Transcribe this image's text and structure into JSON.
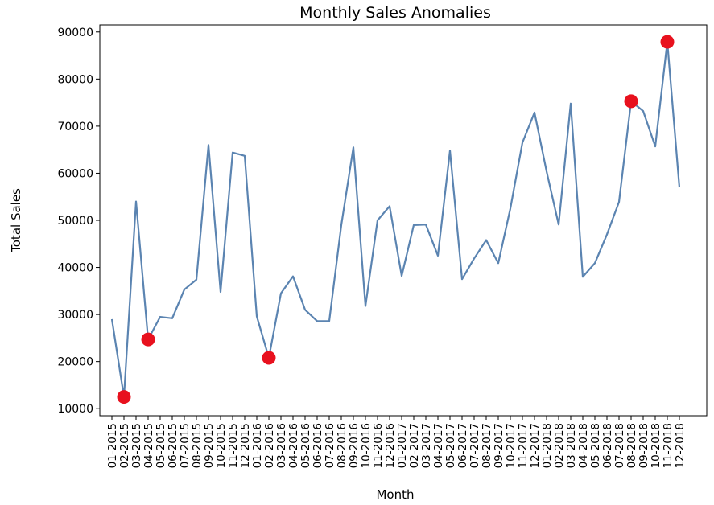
{
  "chart_data": {
    "type": "line",
    "title": "Monthly Sales Anomalies",
    "xlabel": "Month",
    "ylabel": "Total Sales",
    "ylim": [
      8500,
      91500
    ],
    "yticks": [
      10000,
      20000,
      30000,
      40000,
      50000,
      60000,
      70000,
      80000,
      90000
    ],
    "grid": false,
    "line_color": "#5b84b1",
    "anomaly_color": "#e8111e",
    "categories": [
      "01-2015",
      "02-2015",
      "03-2015",
      "04-2015",
      "05-2015",
      "06-2015",
      "07-2015",
      "08-2015",
      "09-2015",
      "10-2015",
      "11-2015",
      "12-2015",
      "01-2016",
      "02-2016",
      "03-2016",
      "04-2016",
      "05-2016",
      "06-2016",
      "07-2016",
      "08-2016",
      "09-2016",
      "10-2016",
      "11-2016",
      "12-2016",
      "01-2017",
      "02-2017",
      "03-2017",
      "04-2017",
      "05-2017",
      "06-2017",
      "07-2017",
      "08-2017",
      "09-2017",
      "10-2017",
      "11-2017",
      "12-2017",
      "01-2018",
      "02-2018",
      "03-2018",
      "04-2018",
      "05-2018",
      "06-2018",
      "07-2018",
      "08-2018",
      "09-2018",
      "10-2018",
      "11-2018",
      "12-2018"
    ],
    "series": [
      {
        "values": [
          29000,
          12500,
          54000,
          24700,
          29500,
          29200,
          35300,
          37400,
          66000,
          34800,
          64400,
          63700,
          29600,
          20800,
          34500,
          38100,
          31000,
          28600,
          28600,
          49000,
          65500,
          31800,
          50000,
          53000,
          38200,
          49000,
          49100,
          42500,
          64800,
          37500,
          41900,
          45800,
          40900,
          52500,
          66500,
          72900,
          60400,
          49100,
          74800,
          38000,
          40900,
          47000,
          53900,
          75300,
          73200,
          65700,
          87900,
          57000
        ]
      }
    ],
    "anomalies": [
      {
        "month": "02-2015",
        "value": 12500
      },
      {
        "month": "04-2015",
        "value": 24700
      },
      {
        "month": "02-2016",
        "value": 20800
      },
      {
        "month": "08-2018",
        "value": 75300
      },
      {
        "month": "11-2018",
        "value": 87900
      }
    ]
  }
}
